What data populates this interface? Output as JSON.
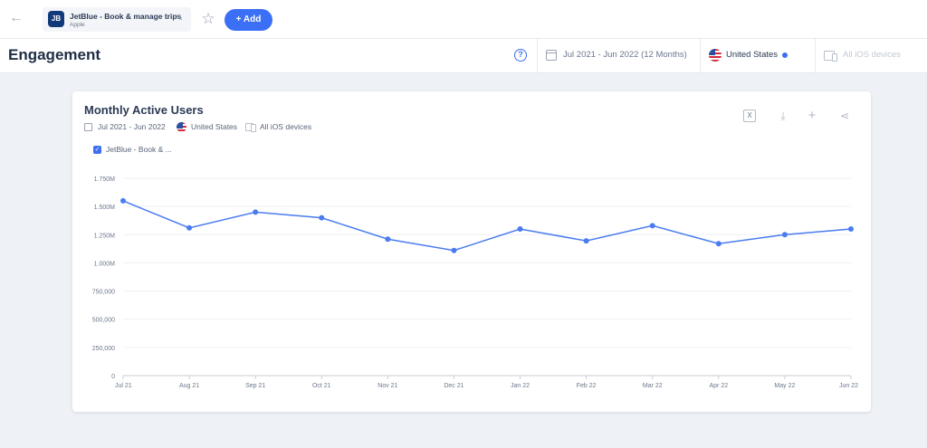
{
  "topbar": {
    "app_name": "JetBlue - Book & manage trips",
    "app_store": "Apple",
    "logo_text": "JB",
    "add_label": "Add",
    "add_plus": "+",
    "back_glyph": "←",
    "star_glyph": "☆",
    "edit_glyph": "✎"
  },
  "header": {
    "title": "Engagement",
    "help_glyph": "?",
    "date_range": "Jul 2021 - Jun 2022 (12 Months)",
    "country": "United States",
    "devices": "All iOS devices"
  },
  "card": {
    "title": "Monthly Active Users",
    "meta_date": "Jul 2021 - Jun 2022",
    "meta_country": "United States",
    "meta_devices": "All iOS devices",
    "legend_label": "JetBlue - Book & ...",
    "legend_check": "✓",
    "tools": [
      {
        "name": "excel-icon",
        "glyph": "X"
      },
      {
        "name": "download-icon",
        "glyph": "⤓"
      },
      {
        "name": "add-icon",
        "glyph": "+"
      },
      {
        "name": "share-icon",
        "glyph": "⋖"
      }
    ]
  },
  "colors": {
    "accent": "#3b6ff5",
    "line": "#4a7cf0",
    "grid": "#eef0f4"
  },
  "chart_data": {
    "type": "line",
    "title": "",
    "xlabel": "",
    "ylabel": "",
    "categories": [
      "Jul 21",
      "Aug 21",
      "Sep 21",
      "Oct 21",
      "Nov 21",
      "Dec 21",
      "Jan 22",
      "Feb 22",
      "Mar 22",
      "Apr 22",
      "May 22",
      "Jun 22"
    ],
    "series": [
      {
        "values": [
          1550000,
          1310000,
          1450000,
          1400000,
          1210000,
          1110000,
          1300000,
          1195000,
          1330000,
          1170000,
          1250000,
          1300000
        ]
      }
    ],
    "ylim": [
      0,
      1750000
    ],
    "yticks": [
      0,
      250000,
      500000,
      750000,
      1000000,
      1250000,
      1500000,
      1750000
    ],
    "ytick_labels": [
      "0",
      "250,000",
      "500,000",
      "750,000",
      "1.000M",
      "1.250M",
      "1.500M",
      "1.750M"
    ],
    "grid": true,
    "legend": "top-left"
  }
}
